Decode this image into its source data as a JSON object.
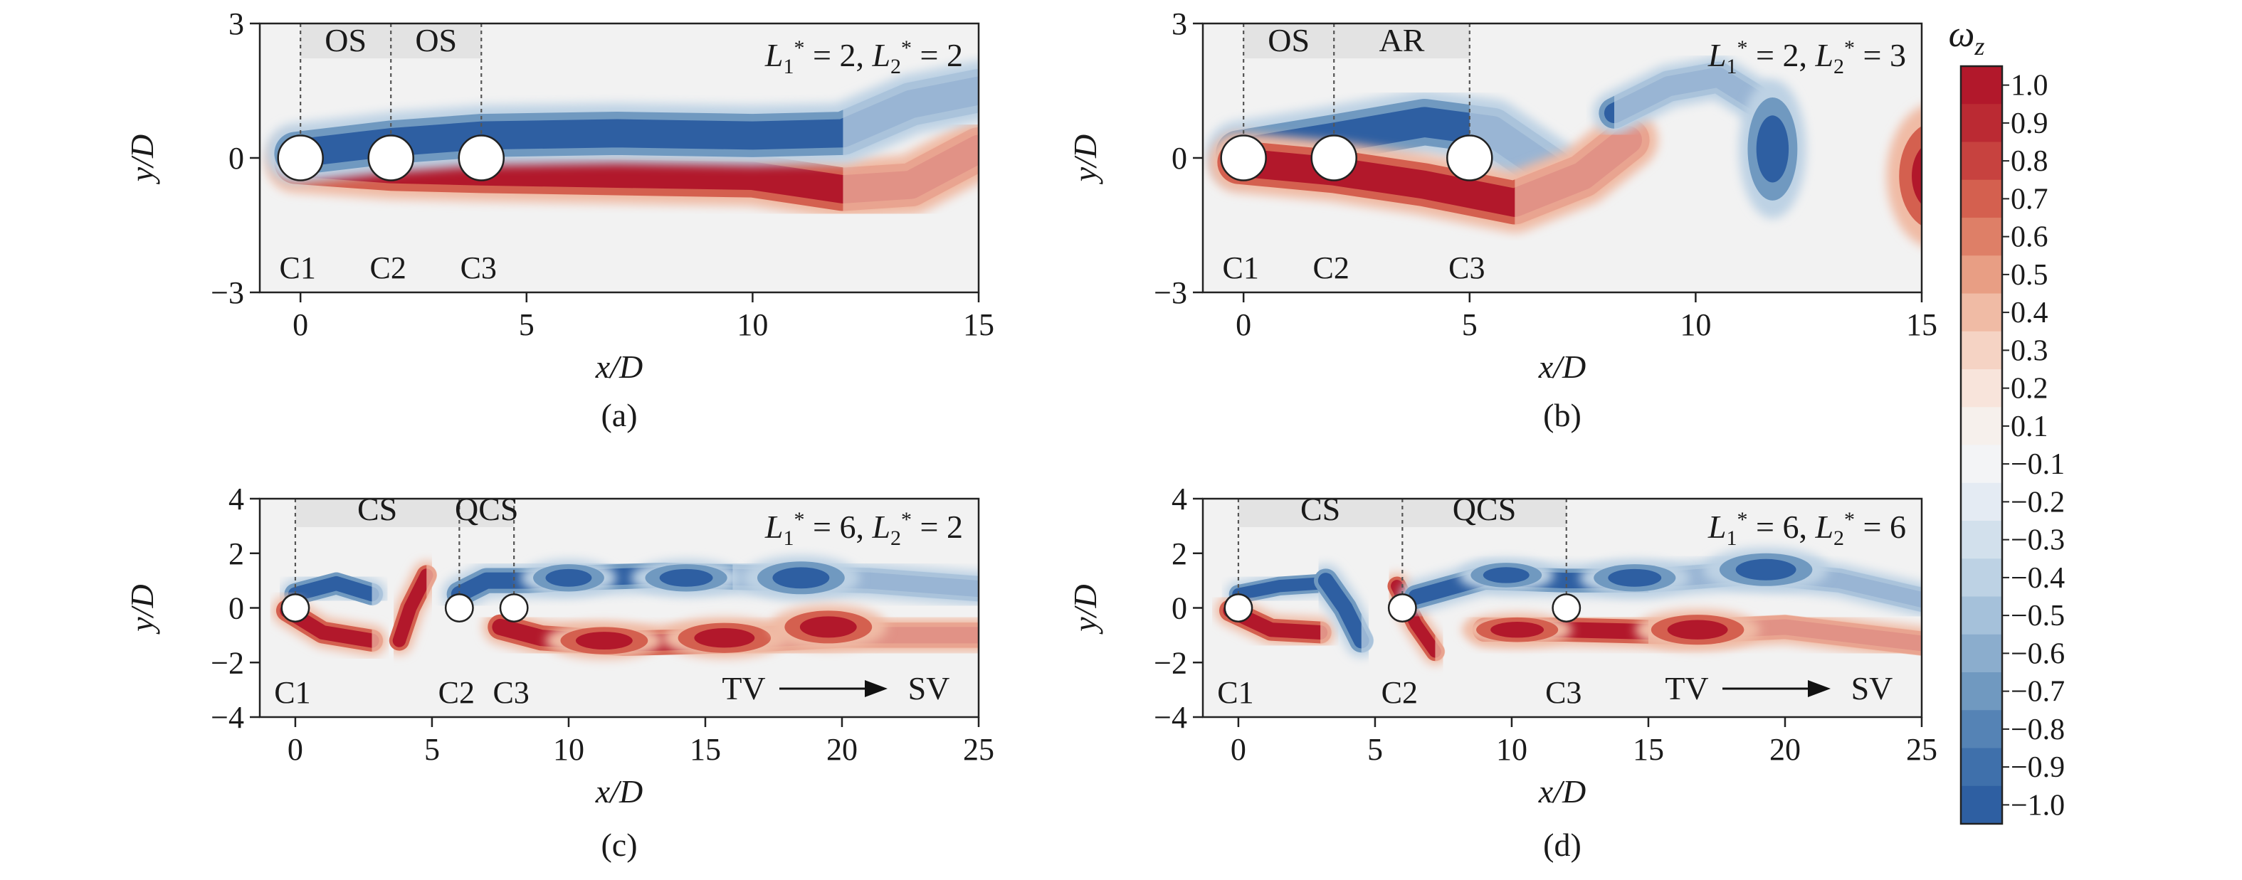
{
  "colors": {
    "positive": "#b2182b",
    "negative": "#2f63a8",
    "background": "#f2f2f2",
    "region_shade": "#e3e3e3"
  },
  "colorbar": {
    "title_base": "ω",
    "title_sub": "z",
    "levels": [
      1.0,
      0.9,
      0.8,
      0.7,
      0.6,
      0.5,
      0.4,
      0.3,
      0.2,
      0.1,
      -0.1,
      -0.2,
      -0.3,
      -0.4,
      -0.5,
      -0.6,
      -0.7,
      -0.8,
      -0.9,
      -1.0
    ],
    "labels": [
      "1.0",
      "0.9",
      "0.8",
      "0.7",
      "0.6",
      "0.5",
      "0.4",
      "0.3",
      "0.2",
      "0.1",
      "−0.1",
      "−0.2",
      "−0.3",
      "−0.4",
      "−0.5",
      "−0.6",
      "−0.7",
      "−0.8",
      "−0.9",
      "−1.0"
    ],
    "colors": [
      "#b2182b",
      "#bb2a33",
      "#c7423f",
      "#d4604f",
      "#de7f67",
      "#e89e84",
      "#f0bba5",
      "#f5d3c4",
      "#f8e4db",
      "#f6f0ec",
      "#f3f4f6",
      "#e4ebf3",
      "#d2e0ec",
      "#bdd2e4",
      "#a5c1da",
      "#8badcd",
      "#7099c0",
      "#5583b5",
      "#3f70ab",
      "#2e5fa2"
    ]
  },
  "chart_data": [
    {
      "type": "heatmap",
      "caption": "(a)",
      "xlabel": "x/D",
      "ylabel": "y/D",
      "xlim": [
        -0.9,
        15
      ],
      "ylim": [
        -3,
        3
      ],
      "xticks": [
        0,
        5,
        10,
        15
      ],
      "xtick_labels": [
        "0",
        "5",
        "10",
        "15"
      ],
      "yticks": [
        -3,
        0,
        3
      ],
      "ytick_labels": [
        "−3",
        "0",
        "3"
      ],
      "param_label": {
        "L1": "2",
        "L2": "2"
      },
      "cylinders": [
        {
          "name": "C1",
          "x": 0
        },
        {
          "name": "C2",
          "x": 2
        },
        {
          "name": "C3",
          "x": 4
        }
      ],
      "regions": [
        {
          "label": "OS",
          "x0": 0,
          "x1": 2
        },
        {
          "label": "OS",
          "x0": 2,
          "x1": 4
        }
      ],
      "shear_layers": [
        {
          "sign": 1,
          "pts": [
            [
              -0.1,
              -0.1
            ],
            [
              2,
              -0.25
            ],
            [
              4,
              -0.3
            ],
            [
              7,
              -0.35
            ],
            [
              10,
              -0.4
            ],
            [
              12,
              -0.7
            ],
            [
              13.5,
              -0.6
            ],
            [
              15,
              0.2
            ]
          ],
          "half_width": 0.42,
          "tail_from": 12
        },
        {
          "sign": -1,
          "pts": [
            [
              -0.1,
              0.1
            ],
            [
              2,
              0.35
            ],
            [
              4,
              0.5
            ],
            [
              7,
              0.55
            ],
            [
              10,
              0.5
            ],
            [
              12,
              0.55
            ],
            [
              13.5,
              1.2
            ],
            [
              15,
              1.5
            ]
          ],
          "half_width": 0.42,
          "tail_from": 12
        }
      ],
      "vortices": []
    },
    {
      "type": "heatmap",
      "caption": "(b)",
      "xlabel": "x/D",
      "ylabel": "y/D",
      "xlim": [
        -0.9,
        15
      ],
      "ylim": [
        -3,
        3
      ],
      "xticks": [
        0,
        5,
        10,
        15
      ],
      "xtick_labels": [
        "0",
        "5",
        "10",
        "15"
      ],
      "yticks": [
        -3,
        0,
        3
      ],
      "ytick_labels": [
        "−3",
        "0",
        "3"
      ],
      "param_label": {
        "L1": "2",
        "L2": "3"
      },
      "cylinders": [
        {
          "name": "C1",
          "x": 0
        },
        {
          "name": "C2",
          "x": 2
        },
        {
          "name": "C3",
          "x": 5
        }
      ],
      "regions": [
        {
          "label": "OS",
          "x0": 0,
          "x1": 2
        },
        {
          "label": "AR",
          "x0": 2,
          "x1": 5
        }
      ],
      "shear_layers": [
        {
          "sign": -1,
          "pts": [
            [
              -0.1,
              0.1
            ],
            [
              2,
              0.45
            ],
            [
              4,
              0.8
            ],
            [
              5.5,
              0.6
            ],
            [
              6.8,
              -0.3
            ]
          ],
          "half_width": 0.45,
          "tail_from": 5
        },
        {
          "sign": 1,
          "pts": [
            [
              -0.1,
              -0.1
            ],
            [
              2,
              -0.3
            ],
            [
              4,
              -0.6
            ],
            [
              6,
              -1.0
            ],
            [
              7.5,
              -0.4
            ],
            [
              8.5,
              0.4
            ]
          ],
          "half_width": 0.42,
          "tail_from": 6
        },
        {
          "sign": -1,
          "pts": [
            [
              8.2,
              1.0
            ],
            [
              9.4,
              1.6
            ],
            [
              10.5,
              1.8
            ],
            [
              11.3,
              1.3
            ]
          ],
          "half_width": 0.3,
          "tail_from": 8.2
        }
      ],
      "vortices": [
        {
          "sign": -1,
          "x": 11.7,
          "y": 0.2,
          "rx": 0.55,
          "ry": 1.15
        },
        {
          "sign": 1,
          "x": 15.3,
          "y": -0.4,
          "rx": 0.8,
          "ry": 1.2
        }
      ]
    },
    {
      "type": "heatmap",
      "caption": "(c)",
      "xlabel": "x/D",
      "ylabel": "y/D",
      "xlim": [
        -1.3,
        25
      ],
      "ylim": [
        -4,
        4
      ],
      "xticks": [
        0,
        5,
        10,
        15,
        20,
        25
      ],
      "xtick_labels": [
        "0",
        "5",
        "10",
        "15",
        "20",
        "25"
      ],
      "yticks": [
        -4,
        -2,
        0,
        2,
        4
      ],
      "ytick_labels": [
        "−4",
        "−2",
        "0",
        "2",
        "4"
      ],
      "param_label": {
        "L1": "6",
        "L2": "2"
      },
      "cylinders": [
        {
          "name": "C1",
          "x": 0
        },
        {
          "name": "C2",
          "x": 6
        },
        {
          "name": "C3",
          "x": 8
        }
      ],
      "regions": [
        {
          "label": "CS",
          "x0": 0,
          "x1": 6
        },
        {
          "label": "QCS",
          "x0": 6,
          "x1": 8
        }
      ],
      "arrow": {
        "from": "TV",
        "to": "SV"
      },
      "shear_layers": [
        {
          "sign": -1,
          "pts": [
            [
              0,
              0.5
            ],
            [
              1.5,
              0.9
            ],
            [
              2.8,
              0.5
            ]
          ],
          "half_width": 0.35,
          "tail_from": 2.8
        },
        {
          "sign": 1,
          "pts": [
            [
              -0.3,
              -0.1
            ],
            [
              1,
              -0.9
            ],
            [
              2.8,
              -1.2
            ]
          ],
          "half_width": 0.35,
          "tail_from": 2.8
        },
        {
          "sign": 1,
          "pts": [
            [
              4.8,
              1.2
            ],
            [
              4.2,
              0
            ],
            [
              3.8,
              -1.2
            ]
          ],
          "half_width": 0.32,
          "tail_from": 4.8
        },
        {
          "sign": -1,
          "pts": [
            [
              6,
              0.5
            ],
            [
              7,
              1.0
            ],
            [
              8.5,
              1.0
            ],
            [
              10.5,
              1.1
            ],
            [
              13.5,
              1.2
            ],
            [
              17,
              1.1
            ],
            [
              21,
              1.0
            ],
            [
              25,
              0.7
            ]
          ],
          "half_width": 0.4,
          "tail_from": 16
        },
        {
          "sign": 1,
          "pts": [
            [
              7.5,
              -0.7
            ],
            [
              9,
              -1.1
            ],
            [
              12,
              -1.3
            ],
            [
              16,
              -1.2
            ],
            [
              20,
              -1.0
            ],
            [
              25,
              -1.0
            ]
          ],
          "half_width": 0.4,
          "tail_from": 16
        }
      ],
      "vortices": [
        {
          "sign": -1,
          "x": 10.0,
          "y": 1.1,
          "rx": 1.3,
          "ry": 0.5
        },
        {
          "sign": -1,
          "x": 14.3,
          "y": 1.1,
          "rx": 1.5,
          "ry": 0.5
        },
        {
          "sign": -1,
          "x": 18.5,
          "y": 1.1,
          "rx": 1.6,
          "ry": 0.6
        },
        {
          "sign": 1,
          "x": 11.3,
          "y": -1.2,
          "rx": 1.6,
          "ry": 0.5
        },
        {
          "sign": 1,
          "x": 15.7,
          "y": -1.1,
          "rx": 1.7,
          "ry": 0.55
        },
        {
          "sign": 1,
          "x": 19.5,
          "y": -0.7,
          "rx": 1.6,
          "ry": 0.6
        }
      ]
    },
    {
      "type": "heatmap",
      "caption": "(d)",
      "xlabel": "x/D",
      "ylabel": "y/D",
      "xlim": [
        -1.3,
        25
      ],
      "ylim": [
        -4,
        4
      ],
      "xticks": [
        0,
        5,
        10,
        15,
        20,
        25
      ],
      "xtick_labels": [
        "0",
        "5",
        "10",
        "15",
        "20",
        "25"
      ],
      "yticks": [
        -4,
        -2,
        0,
        2,
        4
      ],
      "ytick_labels": [
        "−4",
        "−2",
        "0",
        "2",
        "4"
      ],
      "param_label": {
        "L1": "6",
        "L2": "6"
      },
      "cylinders": [
        {
          "name": "C1",
          "x": 0
        },
        {
          "name": "C2",
          "x": 6
        },
        {
          "name": "C3",
          "x": 12
        }
      ],
      "regions": [
        {
          "label": "CS",
          "x0": 0,
          "x1": 6
        },
        {
          "label": "QCS",
          "x0": 6,
          "x1": 12
        }
      ],
      "arrow": {
        "from": "TV",
        "to": "SV"
      },
      "shear_layers": [
        {
          "sign": -1,
          "pts": [
            [
              0,
              0.5
            ],
            [
              1.5,
              0.8
            ],
            [
              3,
              0.9
            ]
          ],
          "half_width": 0.3,
          "tail_from": 3
        },
        {
          "sign": 1,
          "pts": [
            [
              -0.3,
              -0.1
            ],
            [
              1.2,
              -0.8
            ],
            [
              3,
              -0.9
            ]
          ],
          "half_width": 0.35,
          "tail_from": 3
        },
        {
          "sign": -1,
          "pts": [
            [
              3.2,
              1.0
            ],
            [
              3.9,
              0
            ],
            [
              4.5,
              -1.2
            ]
          ],
          "half_width": 0.38,
          "tail_from": 4.5
        },
        {
          "sign": 1,
          "pts": [
            [
              5.8,
              0.8
            ],
            [
              6.5,
              -0.6
            ],
            [
              7.2,
              -1.6
            ]
          ],
          "half_width": 0.3,
          "tail_from": 7.2
        },
        {
          "sign": -1,
          "pts": [
            [
              6.5,
              0.4
            ],
            [
              9,
              1.1
            ],
            [
              12,
              1.0
            ],
            [
              15,
              1.0
            ],
            [
              19,
              1.3
            ],
            [
              22,
              1.0
            ],
            [
              25,
              0.3
            ]
          ],
          "half_width": 0.38,
          "tail_from": 15
        },
        {
          "sign": 1,
          "pts": [
            [
              9,
              -0.8
            ],
            [
              12,
              -0.8
            ],
            [
              16,
              -0.9
            ],
            [
              20,
              -0.7
            ],
            [
              25,
              -1.3
            ]
          ],
          "half_width": 0.38,
          "tail_from": 15
        }
      ],
      "vortices": [
        {
          "sign": -1,
          "x": 9.8,
          "y": 1.2,
          "rx": 1.3,
          "ry": 0.45
        },
        {
          "sign": -1,
          "x": 14.5,
          "y": 1.1,
          "rx": 1.5,
          "ry": 0.5
        },
        {
          "sign": -1,
          "x": 19.3,
          "y": 1.4,
          "rx": 1.7,
          "ry": 0.6
        },
        {
          "sign": 1,
          "x": 10.2,
          "y": -0.8,
          "rx": 1.5,
          "ry": 0.45
        },
        {
          "sign": 1,
          "x": 16.8,
          "y": -0.8,
          "rx": 1.7,
          "ry": 0.55
        }
      ]
    }
  ]
}
